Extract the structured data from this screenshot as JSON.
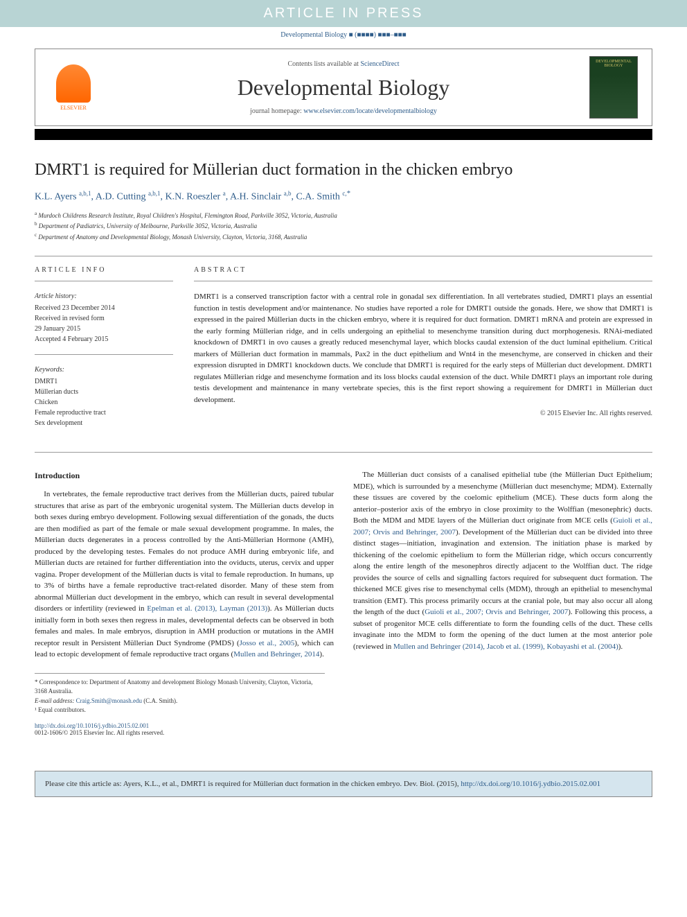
{
  "banner": "ARTICLE IN PRESS",
  "journal_ref": "Developmental Biology ■ (■■■■) ■■■–■■■",
  "header": {
    "contents_prefix": "Contents lists available at ",
    "contents_link": "ScienceDirect",
    "journal_name": "Developmental Biology",
    "homepage_prefix": "journal homepage: ",
    "homepage_url": "www.elsevier.com/locate/developmentalbiology",
    "publisher": "ELSEVIER",
    "cover_label": "DEVELOPMENTAL BIOLOGY"
  },
  "title": "DMRT1 is required for Müllerian duct formation in the chicken embryo",
  "authors_html": "K.L. Ayers <span class='sup'>a,b,1</span>, A.D. Cutting <span class='sup'>a,b,1</span>, K.N. Roeszler <span class='sup'>a</span>, A.H. Sinclair <span class='sup'>a,b</span>, C.A. Smith <span class='sup'>c,</span><span class='cross'>*</span>",
  "affiliations": {
    "a": "Murdoch Childrens Research Institute, Royal Children's Hospital, Flemington Road, Parkville 3052, Victoria, Australia",
    "b": "Department of Pædiatrics, University of Melbourne, Parkville 3052, Victoria, Australia",
    "c": "Department of Anatomy and Developmental Biology, Monash University, Clayton, Victoria, 3168, Australia"
  },
  "article_info": {
    "heading": "ARTICLE INFO",
    "history_head": "Article history:",
    "received": "Received 23 December 2014",
    "revised1": "Received in revised form",
    "revised2": "29 January 2015",
    "accepted": "Accepted 4 February 2015",
    "keywords_head": "Keywords:",
    "keywords": [
      "DMRT1",
      "Müllerian ducts",
      "Chicken",
      "Female reproductive tract",
      "Sex development"
    ]
  },
  "abstract": {
    "heading": "ABSTRACT",
    "text": "DMRT1 is a conserved transcription factor with a central role in gonadal sex differentiation. In all vertebrates studied, DMRT1 plays an essential function in testis development and/or maintenance. No studies have reported a role for DMRT1 outside the gonads. Here, we show that DMRT1 is expressed in the paired Müllerian ducts in the chicken embryo, where it is required for duct formation. DMRT1 mRNA and protein are expressed in the early forming Müllerian ridge, and in cells undergoing an epithelial to mesenchyme transition during duct morphogenesis. RNAi-mediated knockdown of DMRT1 in ovo causes a greatly reduced mesenchymal layer, which blocks caudal extension of the duct luminal epithelium. Critical markers of Müllerian duct formation in mammals, Pax2 in the duct epithelium and Wnt4 in the mesenchyme, are conserved in chicken and their expression disrupted in DMRT1 knockdown ducts. We conclude that DMRT1 is required for the early steps of Müllerian duct development. DMRT1 regulates Müllerian ridge and mesenchyme formation and its loss blocks caudal extension of the duct. While DMRT1 plays an important role during testis development and maintenance in many vertebrate species, this is the first report showing a requirement for DMRT1 in Müllerian duct development.",
    "copyright": "© 2015 Elsevier Inc. All rights reserved."
  },
  "body": {
    "intro_head": "Introduction",
    "para1": "In vertebrates, the female reproductive tract derives from the Müllerian ducts, paired tubular structures that arise as part of the embryonic urogenital system. The Müllerian ducts develop in both sexes during embryo development. Following sexual differentiation of the gonads, the ducts are then modified as part of the female or male sexual development programme. In males, the Müllerian ducts degenerates in a process controlled by the Anti-Müllerian Hormone (AMH), produced by the developing testes. Females do not produce AMH during embryonic life, and Müllerian ducts are retained for further differentiation into the oviducts, uterus, cervix and upper vagina. Proper development of the Müllerian ducts is vital to female reproduction. In humans, up to 3% of births have a female reproductive tract-related disorder. Many of these stem from abnormal Müllerian duct development in the embryo, which can result in several developmental disorders or infertility (reviewed in ",
    "link1": "Epelman et al. (2013), Layman (2013)",
    "para1b": "). As Müllerian ducts initially form in both sexes then regress in males, developmental defects can be observed in both females and males. In male embryos, disruption in AMH production or mutations in the AMH receptor result in",
    "para2a": "Persistent Müllerian Duct Syndrome (PMDS) (",
    "link2": "Josso et al., 2005",
    "para2b": "), which can lead to ectopic development of female reproductive tract organs (",
    "link3": "Mullen and Behringer, 2014",
    "para2c": ").",
    "para3a": "The Müllerian duct consists of a canalised epithelial tube (the Müllerian Duct Epithelium; MDE), which is surrounded by a mesenchyme (Müllerian duct mesenchyme; MDM). Externally these tissues are covered by the coelomic epithelium (MCE). These ducts form along the anterior–posterior axis of the embryo in close proximity to the Wolffian (mesonephric) ducts. Both the MDM and MDE layers of the Müllerian duct originate from MCE cells (",
    "link4": "Guioli et al., 2007; Orvis and Behringer, 2007",
    "para3b": "). Development of the Müllerian duct can be divided into three distinct stages—initiation, invagination and extension. The initiation phase is marked by thickening of the coelomic epithelium to form the Müllerian ridge, which occurs concurrently along the entire length of the mesonephros directly adjacent to the Wolffian duct. The ridge provides the source of cells and signalling factors required for subsequent duct formation. The thickened MCE gives rise to mesenchymal cells (MDM), through an epithelial to mesenchymal transition (EMT). This process primarily occurs at the cranial pole, but may also occur all along the length of the duct (",
    "link5": "Guioli et al., 2007; Orvis and Behringer, 2007",
    "para3c": "). Following this process, a subset of progenitor MCE cells differentiate to form the founding cells of the duct. These cells invaginate into the MDM to form the opening of the duct lumen at the most anterior pole (reviewed in ",
    "link6": "Mullen and Behringer (2014), Jacob et al. (1999), Kobayashi et al. (2004)",
    "para3d": ")."
  },
  "footnotes": {
    "corr_label": "* Correspondence to: Department of Anatomy and development Biology Monash University, Clayton, Victoria, 3168 Australia.",
    "email_label": "E-mail address: ",
    "email": "Craig.Smith@monash.edu",
    "email_author": " (C.A. Smith).",
    "equal": "¹ Equal contributors."
  },
  "doi": {
    "url": "http://dx.doi.org/10.1016/j.ydbio.2015.02.001",
    "line2": "0012-1606/© 2015 Elsevier Inc. All rights reserved."
  },
  "cite": {
    "text": "Please cite this article as: Ayers, K.L., et al., DMRT1 is required for Müllerian duct formation in the chicken embryo. Dev. Biol. (2015), ",
    "url": "http://dx.doi.org/10.1016/j.ydbio.2015.02.001"
  },
  "colors": {
    "banner_bg": "#b8d4d4",
    "link": "#2e5c8a",
    "cite_bg": "#d5e5ee"
  }
}
